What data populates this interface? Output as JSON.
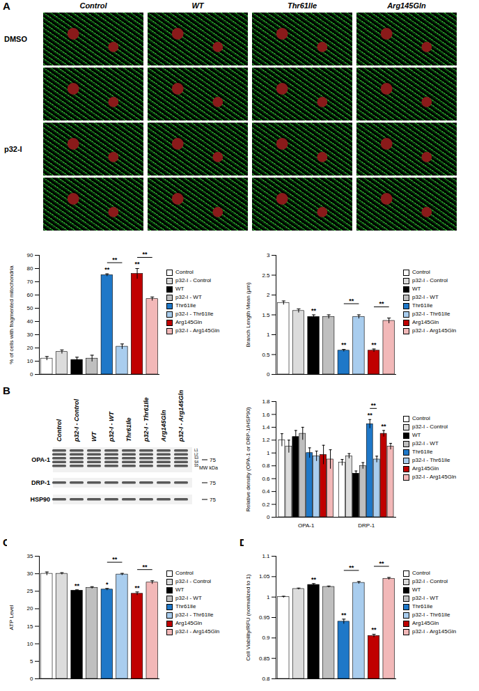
{
  "figure": {
    "panel_labels": [
      "A",
      "B",
      "C",
      "D"
    ],
    "image_columns": [
      "Control",
      "WT",
      "Thr61Ile",
      "Arg145Gln"
    ],
    "image_rows": [
      "DMSO",
      "p32-I"
    ]
  },
  "blot": {
    "lanes": [
      "Control",
      "p32-I - Control",
      "WT",
      "p32-I - WT",
      "Thr61Ile",
      "p32-I - Thr61Ile",
      "Arg145Gln",
      "p32-I - Arg145Gln"
    ],
    "rows": [
      "OPA-1",
      "DRP-1",
      "HSP90"
    ],
    "band_labels": [
      "L1",
      "L2",
      "S3",
      "S4",
      "S5"
    ],
    "mw_label": "MW kDa",
    "mw_marker": 75
  },
  "chart_data": [
    {
      "type": "bar",
      "ylabel": "% of cells with fragmented mitochondria",
      "categories": [
        "Control",
        "p32-I - Control",
        "WT",
        "p32-I - WT",
        "Thr61Ile",
        "p32-I - Thr61Ile",
        "Arg145Gln",
        "p32-I - Arg145Gln"
      ],
      "values": [
        12,
        17,
        11,
        12,
        75,
        21,
        76,
        57
      ],
      "errors": [
        1.5,
        1.5,
        2,
        2.5,
        1,
        2,
        4,
        1.5
      ],
      "colors": [
        "#ffffff",
        "#dcdcdc",
        "#000000",
        "#bfbfbf",
        "#1f78c8",
        "#a9cdee",
        "#c00000",
        "#f2b8b8"
      ],
      "significance": [
        null,
        null,
        null,
        null,
        "**",
        null,
        "**",
        null
      ],
      "comparisons": [
        {
          "from": 4,
          "to": 5,
          "text": "**"
        },
        {
          "from": 6,
          "to": 7,
          "text": "**"
        }
      ],
      "ylim": [
        0,
        90
      ],
      "yticks": [
        0,
        10,
        20,
        30,
        40,
        50,
        60,
        70,
        80,
        90
      ],
      "tick_labels": "y",
      "legend": "right"
    },
    {
      "type": "bar",
      "ylabel": "Branch Length Mean (μm)",
      "categories": [
        "Control",
        "p32-I - Control",
        "WT",
        "p32-I - WT",
        "Thr61Ile",
        "p32-I - Thr61Ile",
        "Arg145Gln",
        "p32-I - Arg145Gln"
      ],
      "values": [
        1.8,
        1.6,
        1.45,
        1.45,
        0.6,
        1.45,
        0.6,
        1.35
      ],
      "errors": [
        0.05,
        0.05,
        0.05,
        0.05,
        0.03,
        0.05,
        0.04,
        0.07
      ],
      "colors": [
        "#ffffff",
        "#dcdcdc",
        "#000000",
        "#bfbfbf",
        "#1f78c8",
        "#a9cdee",
        "#c00000",
        "#f2b8b8"
      ],
      "significance": [
        null,
        null,
        "**",
        null,
        "**",
        null,
        "**",
        null
      ],
      "comparisons": [
        {
          "from": 4,
          "to": 5,
          "text": "**"
        },
        {
          "from": 6,
          "to": 7,
          "text": "**"
        }
      ],
      "ylim": [
        0,
        3
      ],
      "yticks": [
        0,
        0.5,
        1,
        1.5,
        2,
        2.5,
        3
      ],
      "tick_labels": "y",
      "legend": "right"
    },
    {
      "type": "grouped_bar",
      "ylabel": "Relative density (OPA-1 or DRP-1/HSP90)",
      "categories": [
        "OPA-1",
        "DRP-1"
      ],
      "series": [
        {
          "name": "Control",
          "color": "#ffffff",
          "values": [
            1.2,
            0.85
          ],
          "errors": [
            0.1,
            0.05
          ],
          "significance": [
            null,
            null
          ]
        },
        {
          "name": "p32-I - Control",
          "color": "#dcdcdc",
          "values": [
            1.1,
            0.95
          ],
          "errors": [
            0.1,
            0.04
          ],
          "significance": [
            null,
            null
          ]
        },
        {
          "name": "WT",
          "color": "#000000",
          "values": [
            1.25,
            0.68
          ],
          "errors": [
            0.1,
            0.04
          ],
          "significance": [
            null,
            null
          ]
        },
        {
          "name": "p32-I - WT",
          "color": "#bfbfbf",
          "values": [
            1.3,
            0.8
          ],
          "errors": [
            0.1,
            0.05
          ],
          "significance": [
            null,
            null
          ]
        },
        {
          "name": "Thr61Ile",
          "color": "#1f78c8",
          "values": [
            1.0,
            1.45
          ],
          "errors": [
            0.08,
            0.07
          ],
          "significance": [
            null,
            "**"
          ]
        },
        {
          "name": "p32-I - Thr61Ile",
          "color": "#a9cdee",
          "values": [
            0.95,
            0.9
          ],
          "errors": [
            0.08,
            0.05
          ],
          "significance": [
            null,
            null
          ]
        },
        {
          "name": "Arg145Gln",
          "color": "#c00000",
          "values": [
            0.97,
            1.3
          ],
          "errors": [
            0.15,
            0.05
          ],
          "significance": [
            null,
            "**"
          ]
        },
        {
          "name": "p32-I - Arg145Gln",
          "color": "#f2b8b8",
          "values": [
            0.9,
            1.1
          ],
          "errors": [
            0.15,
            0.05
          ],
          "significance": [
            null,
            null
          ]
        }
      ],
      "comparisons": [
        {
          "category": 1,
          "from": 4,
          "to": 5,
          "text": "**"
        }
      ],
      "ylim": [
        0,
        1.8
      ],
      "yticks": [
        0,
        0.2,
        0.4,
        0.6,
        0.8,
        1,
        1.2,
        1.4,
        1.6,
        1.8
      ],
      "legend": "right"
    },
    {
      "type": "bar",
      "ylabel": "ATP Level",
      "categories": [
        "Control",
        "p32-I - Control",
        "WT",
        "p32-I - WT",
        "Thr61Ile",
        "p32-I - Thr61Ile",
        "Arg145Gln",
        "p32-I - Arg145Gln"
      ],
      "values": [
        30,
        30,
        25.2,
        26,
        25.5,
        29.8,
        24.3,
        27.5
      ],
      "errors": [
        0.5,
        0.3,
        0.2,
        0.3,
        0.3,
        0.3,
        0.5,
        0.5
      ],
      "colors": [
        "#ffffff",
        "#dcdcdc",
        "#000000",
        "#bfbfbf",
        "#1f78c8",
        "#a9cdee",
        "#c00000",
        "#f2b8b8"
      ],
      "significance": [
        null,
        null,
        "**",
        null,
        "*",
        null,
        "**",
        null
      ],
      "comparisons": [
        {
          "from": 4,
          "to": 5,
          "text": "**"
        },
        {
          "from": 6,
          "to": 7,
          "text": "**"
        }
      ],
      "ylim": [
        0,
        35
      ],
      "yticks": [
        0,
        5,
        10,
        15,
        20,
        25,
        30,
        35
      ],
      "tick_labels": "y",
      "legend": "right"
    },
    {
      "type": "bar",
      "ylabel": "Cell Viability/RFU (normalized to 1)",
      "categories": [
        "Control",
        "p32-I - Control",
        "WT",
        "p32-I - WT",
        "Thr61Ile",
        "p32-I - Thr61Ile",
        "Arg145Gln",
        "p32-I - Arg145Gln"
      ],
      "values": [
        1.0,
        1.02,
        1.03,
        1.025,
        0.94,
        1.035,
        0.905,
        1.045
      ],
      "errors": [
        0.002,
        0.002,
        0.003,
        0.002,
        0.006,
        0.003,
        0.004,
        0.003
      ],
      "colors": [
        "#ffffff",
        "#dcdcdc",
        "#000000",
        "#bfbfbf",
        "#1f78c8",
        "#a9cdee",
        "#c00000",
        "#f2b8b8"
      ],
      "significance": [
        null,
        null,
        "**",
        null,
        "**",
        null,
        "**",
        null
      ],
      "comparisons": [
        {
          "from": 4,
          "to": 5,
          "text": "**"
        },
        {
          "from": 6,
          "to": 7,
          "text": "**"
        }
      ],
      "ylim": [
        0.8,
        1.1
      ],
      "yticks": [
        0.8,
        0.85,
        0.9,
        0.95,
        1,
        1.05,
        1.1
      ],
      "tick_labels": "y",
      "legend": "right"
    }
  ]
}
